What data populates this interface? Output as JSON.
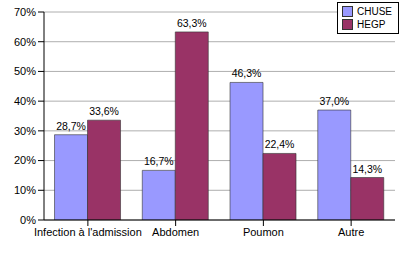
{
  "chart_data": {
    "type": "bar",
    "categories": [
      "Infection à l'admission",
      "Abdomen",
      "Poumon",
      "Autre"
    ],
    "series": [
      {
        "name": "CHUSE",
        "color": "#9999ff",
        "values": [
          28.7,
          16.7,
          46.3,
          37.0
        ],
        "value_labels": [
          "28,7%",
          "16,7%",
          "46,3%",
          "37,0%"
        ]
      },
      {
        "name": "HEGP",
        "color": "#993366",
        "values": [
          33.6,
          63.3,
          22.4,
          14.3
        ],
        "value_labels": [
          "33,6%",
          "63,3%",
          "22,4%",
          "14,3%"
        ]
      }
    ],
    "ylim": [
      0,
      70
    ],
    "yticks": [
      {
        "value": 0,
        "label": "0%"
      },
      {
        "value": 10,
        "label": "10%"
      },
      {
        "value": 20,
        "label": "20%"
      },
      {
        "value": 30,
        "label": "30%"
      },
      {
        "value": 40,
        "label": "40%"
      },
      {
        "value": 50,
        "label": "50%"
      },
      {
        "value": 60,
        "label": "60%"
      },
      {
        "value": 70,
        "label": "70%"
      }
    ],
    "grid": true,
    "legend": "top-right",
    "data_labels": true
  }
}
